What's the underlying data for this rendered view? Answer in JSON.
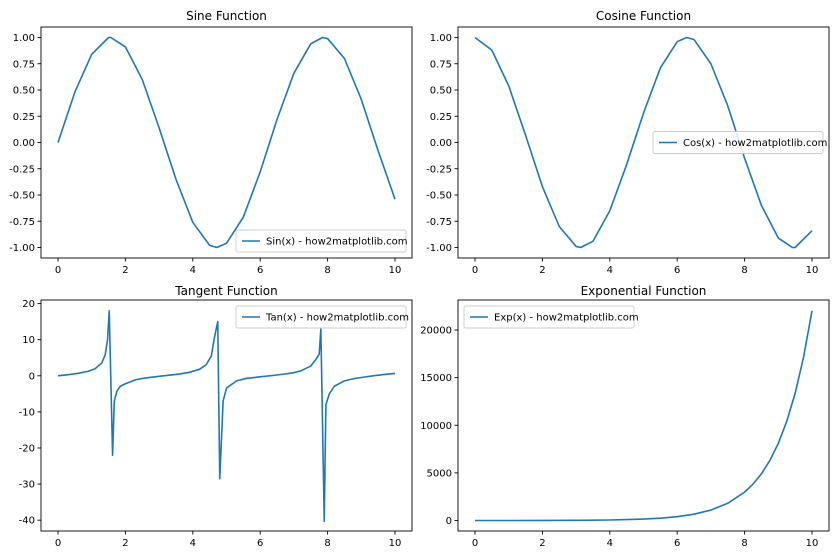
{
  "chart_data": [
    {
      "type": "line",
      "title": "Sine Function",
      "xlabel": "",
      "ylabel": "",
      "xlim": [
        0,
        10
      ],
      "ylim": [
        -1.1,
        1.1
      ],
      "xticks": [
        0,
        2,
        4,
        6,
        8,
        10
      ],
      "yticks": [
        1.0,
        0.75,
        0.5,
        0.25,
        0.0,
        -0.25,
        -0.5,
        -0.75,
        -1.0
      ],
      "ytick_labels": [
        "1.00",
        "0.75",
        "0.50",
        "0.25",
        "0.00",
        "-0.25",
        "-0.50",
        "-0.75",
        "-1.00"
      ],
      "grid": false,
      "legend_position": "lower-right",
      "series": [
        {
          "name": "Sin(x) - how2matplotlib.com",
          "color": "#1f77b4",
          "x": [
            0,
            0.5,
            1,
            1.5,
            1.57,
            2,
            2.5,
            3,
            3.5,
            4,
            4.5,
            4.71,
            5,
            5.5,
            6,
            6.5,
            7,
            7.5,
            7.85,
            8,
            8.5,
            9,
            9.5,
            10
          ],
          "y": [
            0,
            0.48,
            0.84,
            1.0,
            1.0,
            0.91,
            0.6,
            0.14,
            -0.35,
            -0.76,
            -0.98,
            -1.0,
            -0.96,
            -0.71,
            -0.28,
            0.22,
            0.66,
            0.94,
            1.0,
            0.99,
            0.8,
            0.41,
            -0.08,
            -0.54
          ]
        }
      ]
    },
    {
      "type": "line",
      "title": "Cosine Function",
      "xlabel": "",
      "ylabel": "",
      "xlim": [
        0,
        10
      ],
      "ylim": [
        -1.1,
        1.1
      ],
      "xticks": [
        0,
        2,
        4,
        6,
        8,
        10
      ],
      "yticks": [
        1.0,
        0.75,
        0.5,
        0.25,
        0.0,
        -0.25,
        -0.5,
        -0.75,
        -1.0
      ],
      "ytick_labels": [
        "1.00",
        "0.75",
        "0.50",
        "0.25",
        "0.00",
        "-0.25",
        "-0.50",
        "-0.75",
        "-1.00"
      ],
      "grid": false,
      "legend_position": "center-right",
      "series": [
        {
          "name": "Cos(x) - how2matplotlib.com",
          "color": "#1f77b4",
          "x": [
            0,
            0.5,
            1,
            1.5,
            2,
            2.5,
            3,
            3.14,
            3.5,
            4,
            4.5,
            5,
            5.5,
            6,
            6.28,
            6.5,
            7,
            7.5,
            8,
            8.5,
            9,
            9.42,
            9.5,
            10
          ],
          "y": [
            1.0,
            0.88,
            0.54,
            0.07,
            -0.42,
            -0.8,
            -0.99,
            -1.0,
            -0.94,
            -0.65,
            -0.21,
            0.28,
            0.71,
            0.96,
            1.0,
            0.98,
            0.75,
            0.35,
            -0.15,
            -0.6,
            -0.91,
            -1.0,
            -1.0,
            -0.84
          ]
        }
      ]
    },
    {
      "type": "line",
      "title": "Tangent Function",
      "xlabel": "",
      "ylabel": "",
      "xlim": [
        0,
        10
      ],
      "ylim": [
        -43,
        21
      ],
      "xticks": [
        0,
        2,
        4,
        6,
        8,
        10
      ],
      "yticks": [
        20,
        10,
        0,
        -10,
        -20,
        -30,
        -40
      ],
      "ytick_labels": [
        "20",
        "10",
        "0",
        "-10",
        "-20",
        "-30",
        "-40"
      ],
      "grid": false,
      "legend_position": "upper-right",
      "series": [
        {
          "name": "Tan(x) - how2matplotlib.com",
          "color": "#1f77b4",
          "x": [
            0,
            0.3,
            0.6,
            0.9,
            1.1,
            1.3,
            1.4,
            1.47,
            1.52,
            1.62,
            1.67,
            1.75,
            1.85,
            2.0,
            2.3,
            2.6,
            3.0,
            3.3,
            3.6,
            3.9,
            4.2,
            4.4,
            4.55,
            4.64,
            4.74,
            4.8,
            4.9,
            5.0,
            5.3,
            5.6,
            6.0,
            6.4,
            6.7,
            7.0,
            7.2,
            7.5,
            7.65,
            7.75,
            7.8,
            7.9,
            7.95,
            8.05,
            8.2,
            8.5,
            8.8,
            9.1,
            9.4,
            9.7,
            10
          ],
          "y": [
            0,
            0.31,
            0.68,
            1.26,
            1.96,
            3.6,
            5.8,
            10.0,
            18.0,
            -22.0,
            -7.0,
            -4.2,
            -2.9,
            -2.2,
            -1.1,
            -0.6,
            -0.14,
            0.16,
            0.49,
            0.97,
            1.8,
            3.1,
            5.5,
            10.5,
            15.0,
            -28.5,
            -7.0,
            -3.4,
            -1.4,
            -0.7,
            -0.29,
            0.12,
            0.46,
            0.87,
            1.34,
            2.7,
            4.5,
            6.0,
            13.0,
            -40.3,
            -8.0,
            -5.0,
            -2.9,
            -1.4,
            -0.75,
            -0.34,
            0.06,
            0.38,
            0.65
          ]
        }
      ]
    },
    {
      "type": "line",
      "title": "Exponential Function",
      "xlabel": "",
      "ylabel": "",
      "xlim": [
        0,
        10
      ],
      "ylim": [
        -1100,
        23150
      ],
      "xticks": [
        0,
        2,
        4,
        6,
        8,
        10
      ],
      "yticks": [
        20000,
        15000,
        10000,
        5000,
        0
      ],
      "ytick_labels": [
        "20000",
        "15000",
        "10000",
        "5000",
        "0"
      ],
      "grid": false,
      "legend_position": "upper-left",
      "series": [
        {
          "name": "Exp(x) - how2matplotlib.com",
          "color": "#1f77b4",
          "x": [
            0,
            1,
            2,
            3,
            4,
            5,
            5.5,
            6,
            6.5,
            7,
            7.5,
            8,
            8.25,
            8.5,
            8.75,
            9,
            9.25,
            9.5,
            9.75,
            10
          ],
          "y": [
            1,
            2.7,
            7.4,
            20,
            55,
            148,
            245,
            403,
            665,
            1097,
            1808,
            2981,
            3827,
            4915,
            6311,
            8103,
            10405,
            13360,
            17154,
            22026
          ]
        }
      ]
    }
  ]
}
